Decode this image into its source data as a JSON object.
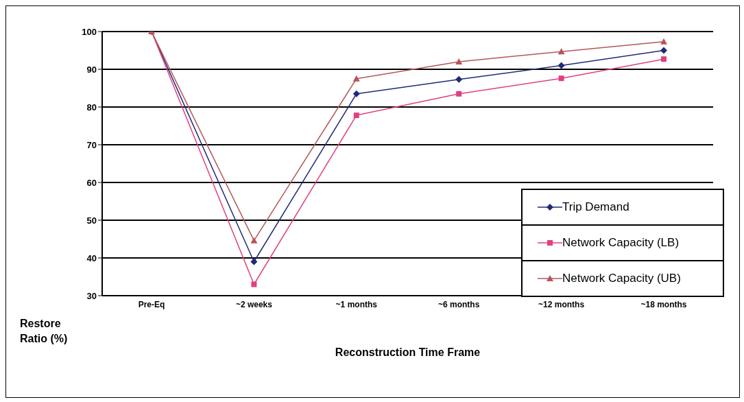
{
  "chart_data": {
    "type": "line",
    "xlabel": "Reconstruction Time Frame",
    "ylabel": "Restore Ratio (%)",
    "categories": [
      "Pre-Eq",
      "~2 weeks",
      "~1 months",
      "~6 months",
      "~12 months",
      "~18 months"
    ],
    "series": [
      {
        "name": "Trip Demand",
        "color": "#1f2a7a",
        "marker": "diamond",
        "values": [
          100,
          39,
          83.5,
          87.3,
          91,
          95
        ]
      },
      {
        "name": "Network Capacity (LB)",
        "color": "#e0407f",
        "marker": "square",
        "values": [
          100,
          33,
          77.8,
          83.5,
          87.6,
          92.7
        ]
      },
      {
        "name": "Network Capacity (UB)",
        "color": "#b5565a",
        "marker": "triangle",
        "values": [
          100,
          44.6,
          87.5,
          92,
          94.7,
          97.3
        ]
      }
    ],
    "ylim": [
      30,
      100
    ],
    "yticks": [
      30,
      40,
      50,
      60,
      70,
      80,
      90,
      100
    ],
    "grid": "y",
    "legend": "bottom right"
  }
}
